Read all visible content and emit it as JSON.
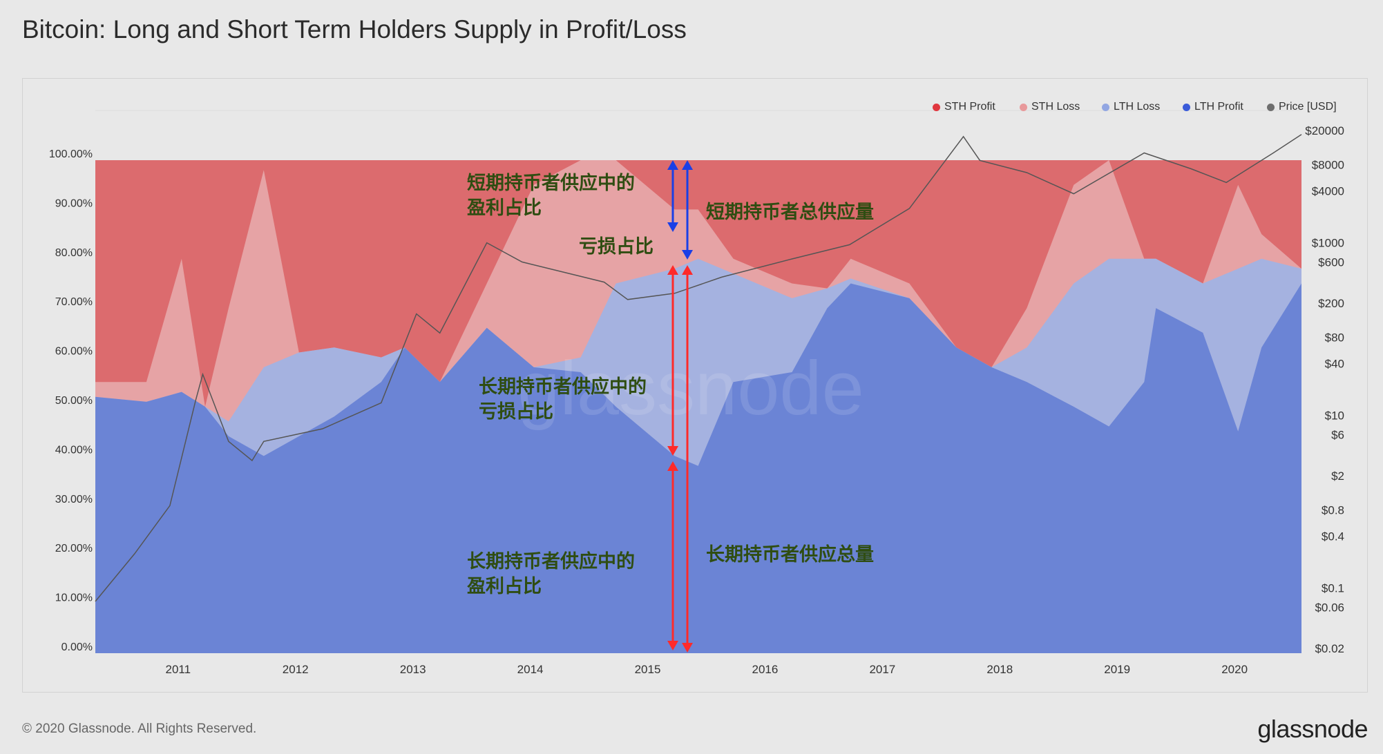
{
  "chart_data": {
    "type": "area",
    "stacked": true,
    "title": "Bitcoin: Long and Short Term Holders Supply in Profit/Loss",
    "xlim": [
      2010.565,
      2020.84
    ],
    "ylim": [
      0,
      100
    ],
    "x_ticks": [
      "2011",
      "2012",
      "2013",
      "2014",
      "2015",
      "2016",
      "2017",
      "2018",
      "2019",
      "2020"
    ],
    "y_ticks": [
      "0.00%",
      "10.00%",
      "20.00%",
      "30.00%",
      "40.00%",
      "50.00%",
      "60.00%",
      "70.00%",
      "80.00%",
      "90.00%",
      "100.00%"
    ],
    "y2_scale": "log",
    "y2_range": [
      0.02,
      20000
    ],
    "y2_ticks": [
      {
        "v": 20000,
        "label": "$20000"
      },
      {
        "v": 8000,
        "label": "$8000"
      },
      {
        "v": 4000,
        "label": "$4000"
      },
      {
        "v": 1000,
        "label": "$1000"
      },
      {
        "v": 600,
        "label": "$600"
      },
      {
        "v": 200,
        "label": "$200"
      },
      {
        "v": 80,
        "label": "$80"
      },
      {
        "v": 40,
        "label": "$40"
      },
      {
        "v": 10,
        "label": "$10"
      },
      {
        "v": 6,
        "label": "$6"
      },
      {
        "v": 2,
        "label": "$2"
      },
      {
        "v": 0.8,
        "label": "$0.8"
      },
      {
        "v": 0.4,
        "label": "$0.4"
      },
      {
        "v": 0.1,
        "label": "$0.1"
      },
      {
        "v": 0.06,
        "label": "$0.06"
      },
      {
        "v": 0.02,
        "label": "$0.02"
      }
    ],
    "legend_position": "top-right",
    "legend": [
      {
        "name": "STH Profit",
        "color": "#e0373f"
      },
      {
        "name": "STH Loss",
        "color": "#e8999b"
      },
      {
        "name": "LTH Loss",
        "color": "#92a6e2"
      },
      {
        "name": "LTH Profit",
        "color": "#3a5bd9"
      },
      {
        "name": "Price [USD]",
        "color": "#6e6e6e"
      }
    ],
    "x": [
      2010.565,
      2011.0,
      2011.3,
      2011.5,
      2011.7,
      2012.0,
      2012.3,
      2012.6,
      2013.0,
      2013.2,
      2013.5,
      2013.9,
      2014.3,
      2014.7,
      2015.0,
      2015.5,
      2015.7,
      2016.0,
      2016.5,
      2016.8,
      2017.0,
      2017.5,
      2017.9,
      2018.2,
      2018.5,
      2018.9,
      2019.2,
      2019.5,
      2019.6,
      2020.0,
      2020.3,
      2020.5,
      2020.84
    ],
    "series_upper_boundary_pct": [
      {
        "name": "LTH Profit",
        "fill": "#6b84d5",
        "values": [
          52,
          51,
          53,
          50,
          44,
          40,
          44,
          48,
          55,
          62,
          55,
          66,
          58,
          57,
          50,
          40,
          38,
          55,
          57,
          70,
          75,
          72,
          62,
          58,
          55,
          50,
          46,
          55,
          70,
          65,
          45,
          62,
          75
        ]
      },
      {
        "name": "LTH Loss",
        "fill": "#a5b2e0",
        "values": [
          52,
          51,
          53,
          50,
          47,
          58,
          61,
          62,
          60,
          62,
          55,
          66,
          58,
          60,
          75,
          78,
          80,
          77,
          72,
          74,
          76,
          72,
          62,
          58,
          62,
          75,
          80,
          80,
          80,
          75,
          78,
          80,
          78
        ]
      },
      {
        "name": "STH Loss",
        "fill": "#e6a3a5",
        "values": [
          55,
          55,
          80,
          45,
          70,
          98,
          60,
          60,
          60,
          62,
          55,
          75,
          95,
          100,
          100,
          90,
          90,
          80,
          75,
          74,
          80,
          75,
          62,
          58,
          70,
          95,
          100,
          80,
          80,
          75,
          95,
          85,
          78
        ]
      },
      {
        "name": "STH Profit",
        "fill": "#dc6b6e",
        "values": [
          100,
          100,
          100,
          100,
          100,
          100,
          100,
          100,
          100,
          100,
          100,
          100,
          100,
          100,
          100,
          100,
          100,
          100,
          100,
          100,
          100,
          100,
          100,
          100,
          100,
          100,
          100,
          100,
          100,
          100,
          100,
          100,
          100
        ]
      }
    ],
    "price": {
      "x": [
        2010.565,
        2010.9,
        2011.2,
        2011.42,
        2011.48,
        2011.7,
        2011.9,
        2012.0,
        2012.5,
        2013.0,
        2013.3,
        2013.5,
        2013.9,
        2014.2,
        2014.9,
        2015.1,
        2015.5,
        2015.9,
        2016.5,
        2016.99,
        2017.5,
        2017.96,
        2018.1,
        2018.5,
        2018.9,
        2019.5,
        2019.9,
        2020.2,
        2020.6,
        2020.84
      ],
      "y": [
        0.07,
        0.25,
        0.9,
        15,
        30,
        5,
        3,
        5,
        7,
        14,
        150,
        90,
        1000,
        600,
        350,
        220,
        260,
        400,
        650,
        950,
        2500,
        17000,
        9000,
        6500,
        3700,
        11000,
        7200,
        5000,
        11000,
        18000
      ]
    },
    "annotations": [
      {
        "id": "sth-profit",
        "text": "短期持币者供应中的\n盈利占比"
      },
      {
        "id": "sth-loss",
        "text": "亏损占比"
      },
      {
        "id": "sth-total",
        "text": "短期持币者总供应量"
      },
      {
        "id": "lth-loss",
        "text": "长期持币者供应中的\n亏损占比"
      },
      {
        "id": "lth-profit",
        "text": "长期持币者供应中的\n盈利占比"
      },
      {
        "id": "lth-total",
        "text": "长期持币者供应总量"
      }
    ],
    "watermark": "glassnode"
  },
  "footer": {
    "copyright": "© 2020 Glassnode. All Rights Reserved.",
    "brand": "glassnode"
  }
}
